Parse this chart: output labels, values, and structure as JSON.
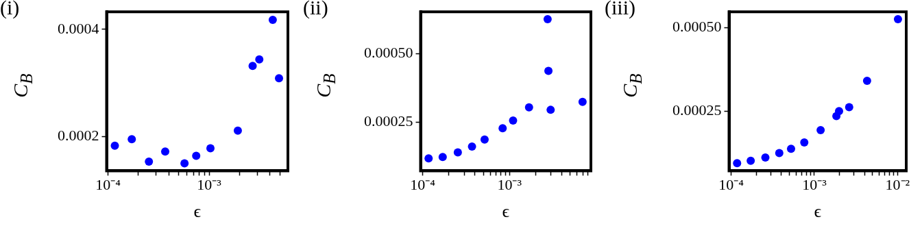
{
  "chart_data": [
    {
      "type": "scatter",
      "title": "(i)",
      "xlabel": "ϵ",
      "ylabel": "C$_{B}$",
      "log": "x",
      "grid": false,
      "legend": false,
      "marker": "circle",
      "xlim": [
        9.7e-05,
        0.006
      ],
      "ylim": [
        0.000136,
        0.000433
      ],
      "xticks": [
        {
          "value": 0.0001,
          "label": "10⁻⁴"
        },
        {
          "value": 0.0002,
          "label": null
        },
        {
          "value": 0.0003,
          "label": null
        },
        {
          "value": 0.0004,
          "label": null
        },
        {
          "value": 0.0005,
          "label": null
        },
        {
          "value": 0.0006,
          "label": null
        },
        {
          "value": 0.0007,
          "label": null
        },
        {
          "value": 0.0008,
          "label": null
        },
        {
          "value": 0.0009,
          "label": null
        },
        {
          "value": 0.001,
          "label": "10⁻³"
        },
        {
          "value": 0.002,
          "label": null
        },
        {
          "value": 0.003,
          "label": null
        },
        {
          "value": 0.004,
          "label": null
        },
        {
          "value": 0.005,
          "label": null
        }
      ],
      "yticks": [
        {
          "value": 0.0002,
          "label": "0.0002"
        },
        {
          "value": 0.0004,
          "label": "0.0004"
        }
      ],
      "series": [
        {
          "color": "#0000ff",
          "x": [
            0.000117,
            0.000172,
            0.000254,
            0.000368,
            0.000571,
            0.000745,
            0.00103,
            0.00192,
            0.00269,
            0.00313,
            0.00425,
            0.0049
          ],
          "values": [
            0.000183,
            0.000195,
            0.000153,
            0.000172,
            0.00015,
            0.000164,
            0.000178,
            0.000211,
            0.000332,
            0.000344,
            0.000418,
            0.000309
          ]
        }
      ]
    },
    {
      "type": "scatter",
      "title": "(ii)",
      "xlabel": "ϵ",
      "ylabel": "C$_{B}$",
      "log": "x",
      "grid": false,
      "legend": false,
      "marker": "circle",
      "xlim": [
        9.45e-05,
        0.00867
      ],
      "ylim": [
        7.3e-05,
        0.000652
      ],
      "xticks": [
        {
          "value": 0.0001,
          "label": "10⁻⁴"
        },
        {
          "value": 0.0002,
          "label": null
        },
        {
          "value": 0.0003,
          "label": null
        },
        {
          "value": 0.0004,
          "label": null
        },
        {
          "value": 0.0005,
          "label": null
        },
        {
          "value": 0.0006,
          "label": null
        },
        {
          "value": 0.0007,
          "label": null
        },
        {
          "value": 0.0008,
          "label": null
        },
        {
          "value": 0.0009,
          "label": null
        },
        {
          "value": 0.001,
          "label": "10⁻³"
        },
        {
          "value": 0.002,
          "label": null
        },
        {
          "value": 0.003,
          "label": null
        },
        {
          "value": 0.004,
          "label": null
        },
        {
          "value": 0.005,
          "label": null
        },
        {
          "value": 0.006,
          "label": null
        },
        {
          "value": 0.007,
          "label": null
        },
        {
          "value": 0.008,
          "label": null
        }
      ],
      "yticks": [
        {
          "value": 0.00025,
          "label": "0.00025"
        },
        {
          "value": 0.0005,
          "label": "0.00050"
        }
      ],
      "series": [
        {
          "color": "#0000ff",
          "x": [
            0.000117,
            0.00017,
            0.000254,
            0.00037,
            0.000517,
            0.000834,
            0.0011,
            0.00168,
            0.00275,
            0.00281,
            0.00298,
            0.00695
          ],
          "values": [
            0.000118,
            0.000123,
            0.00014,
            0.000161,
            0.000187,
            0.000228,
            0.000256,
            0.000304,
            0.000625,
            0.000437,
            0.000295,
            0.000324
          ]
        }
      ]
    },
    {
      "type": "scatter",
      "title": "(iii)",
      "xlabel": "ϵ",
      "ylabel": "C$_{B}$",
      "log": "x",
      "grid": false,
      "legend": false,
      "marker": "circle",
      "xlim": [
        9.44e-05,
        0.0127
      ],
      "ylim": [
        7.1e-05,
        0.000548
      ],
      "xticks": [
        {
          "value": 0.0001,
          "label": "10⁻⁴"
        },
        {
          "value": 0.0002,
          "label": null
        },
        {
          "value": 0.0003,
          "label": null
        },
        {
          "value": 0.0004,
          "label": null
        },
        {
          "value": 0.0005,
          "label": null
        },
        {
          "value": 0.0006,
          "label": null
        },
        {
          "value": 0.0007,
          "label": null
        },
        {
          "value": 0.0008,
          "label": null
        },
        {
          "value": 0.0009,
          "label": null
        },
        {
          "value": 0.001,
          "label": "10⁻³"
        },
        {
          "value": 0.002,
          "label": null
        },
        {
          "value": 0.003,
          "label": null
        },
        {
          "value": 0.004,
          "label": null
        },
        {
          "value": 0.005,
          "label": null
        },
        {
          "value": 0.006,
          "label": null
        },
        {
          "value": 0.007,
          "label": null
        },
        {
          "value": 0.008,
          "label": null
        },
        {
          "value": 0.009,
          "label": null
        },
        {
          "value": 0.01,
          "label": "10⁻²"
        }
      ],
      "yticks": [
        {
          "value": 0.00025,
          "label": "0.00025"
        },
        {
          "value": 0.0005,
          "label": "0.00050"
        }
      ],
      "series": [
        {
          "color": "#0000ff",
          "x": [
            0.000118,
            0.000172,
            0.000258,
            0.000379,
            0.000525,
            0.000757,
            0.00119,
            0.00184,
            0.00198,
            0.00262,
            0.0043,
            0.0101
          ],
          "values": [
            9.4e-05,
            0.000101,
            0.000111,
            0.000124,
            0.000137,
            0.000156,
            0.000193,
            0.000235,
            0.00025,
            0.000262,
            0.000341,
            0.000526
          ]
        }
      ]
    }
  ]
}
